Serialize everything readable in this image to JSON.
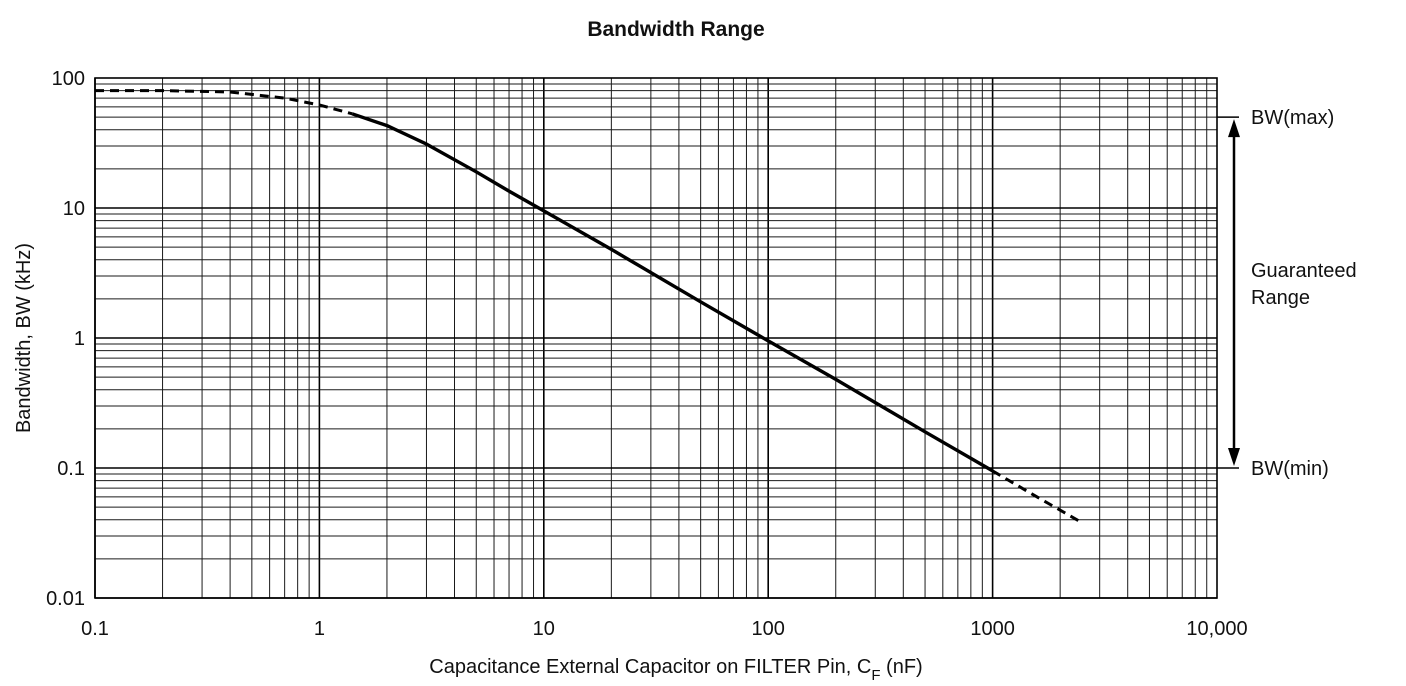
{
  "chart_data": {
    "type": "line",
    "title": "Bandwidth Range",
    "xlabel": {
      "main": "Capacitance External Capacitor on FILTER Pin, C",
      "subscript": "F",
      "suffix": " (nF)"
    },
    "ylabel": "Bandwidth, BW (kHz)",
    "x_scale": "log",
    "y_scale": "log",
    "xlim": [
      0.1,
      10000
    ],
    "ylim": [
      0.01,
      100
    ],
    "x_ticks": [
      0.1,
      1,
      10,
      100,
      1000,
      10000
    ],
    "x_tick_labels": [
      "0.1",
      "1",
      "10",
      "100",
      "1000",
      "10,000"
    ],
    "y_ticks": [
      0.01,
      0.1,
      1,
      10,
      100
    ],
    "y_tick_labels": [
      "0.01",
      "0.1",
      "1",
      "10",
      "100"
    ],
    "grid": true,
    "series": [
      {
        "segments": [
          {
            "style": "dashed",
            "x": [
              0.1,
              0.2,
              0.4,
              0.7,
              1.0,
              1.4
            ],
            "y": [
              80,
              80,
              78,
              70,
              62,
              53
            ]
          },
          {
            "style": "solid",
            "x": [
              1.4,
              2,
              3,
              5,
              7,
              10,
              20,
              50,
              100,
              200,
              500,
              1000
            ],
            "y": [
              53,
              43,
              31,
              19,
              13.5,
              9.5,
              4.8,
              1.9,
              0.95,
              0.48,
              0.19,
              0.095
            ]
          },
          {
            "style": "dashed",
            "x": [
              1000,
              1500,
              2500
            ],
            "y": [
              0.095,
              0.063,
              0.038
            ]
          }
        ]
      }
    ],
    "annotations": {
      "bw_max": {
        "label": "BW(max)",
        "y": 50
      },
      "bw_min": {
        "label": "BW(min)",
        "y": 0.1
      },
      "range_label": [
        "Guaranteed",
        "Range"
      ]
    }
  }
}
